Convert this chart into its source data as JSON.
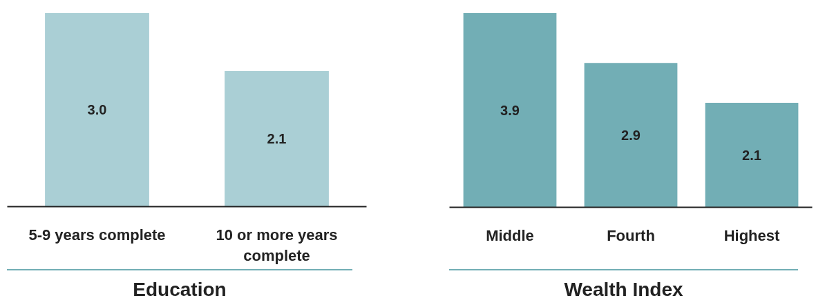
{
  "chart_data": [
    {
      "type": "bar",
      "xlabel": "Education",
      "categories": [
        "5-9 years complete",
        "10 or more years complete"
      ],
      "values": [
        3.0,
        2.1
      ],
      "value_labels": [
        "3.0",
        "2.1"
      ],
      "color": "#aacfd5",
      "grid": false
    },
    {
      "type": "bar",
      "xlabel": "Wealth Index",
      "categories": [
        "Middle",
        "Fourth",
        "Highest"
      ],
      "values": [
        3.9,
        2.9,
        2.1
      ],
      "value_labels": [
        "3.9",
        "2.9",
        "2.1"
      ],
      "color": "#72aeb5",
      "grid": false
    }
  ]
}
